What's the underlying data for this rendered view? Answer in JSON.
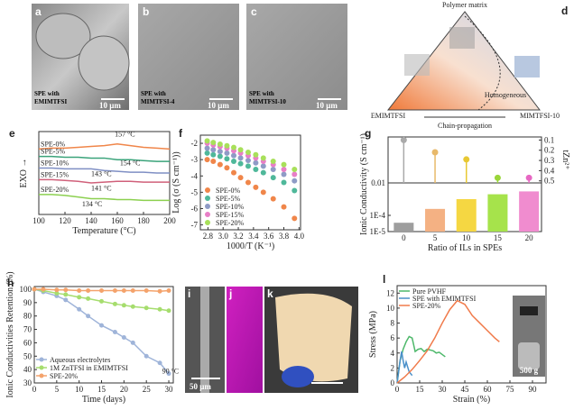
{
  "images": [
    {
      "label": "a",
      "caption": [
        "SPE with",
        "EMIMTFSI"
      ],
      "scale": "10 μm"
    },
    {
      "label": "b",
      "caption": [
        "SPE with",
        "MIMTFSI-4"
      ],
      "scale": "10 μm"
    },
    {
      "label": "c",
      "caption": [
        "SPE with",
        "MIMTFSI-10"
      ],
      "scale": "10 μm"
    },
    {
      "label": "i",
      "scale": "50 μm"
    },
    {
      "label": "j"
    },
    {
      "label": "k"
    }
  ],
  "diagram": {
    "label": "d",
    "top": "Polymer matrix",
    "left": "EMIMTFSI",
    "right": "MIMTFSI-10",
    "center": "Homogeneous",
    "bottom": "Chain-propagation"
  },
  "chart_data": [
    {
      "type": "line",
      "label": "e",
      "xlabel": "Temperature (°C)",
      "ylabel": "EXO →",
      "legend": "inline",
      "xlim": [
        100,
        200
      ],
      "xticks": [
        100,
        120,
        140,
        160,
        180,
        200
      ],
      "ylim": [
        0,
        10
      ],
      "x": [
        100,
        110,
        120,
        130,
        140,
        150,
        160,
        170,
        180,
        190,
        200
      ],
      "series": [
        {
          "name": "SPE-0%",
          "color": "#f0864a",
          "values": [
            7.9,
            8.0,
            8.0,
            8.1,
            8.2,
            8.3,
            8.5,
            8.3,
            8.1,
            8.0,
            7.9
          ]
        },
        {
          "name": "SPE-5%",
          "color": "#3aa37a",
          "values": [
            7.0,
            7.0,
            6.9,
            6.9,
            6.8,
            6.8,
            6.6,
            6.6,
            6.5,
            6.4,
            6.4
          ]
        },
        {
          "name": "SPE-10%",
          "color": "#7f8fc4",
          "values": [
            5.6,
            5.6,
            5.5,
            5.5,
            5.5,
            5.3,
            5.2,
            5.1,
            5.1,
            5.0,
            5.0
          ]
        },
        {
          "name": "SPE-15%",
          "color": "#d0607a",
          "values": [
            4.2,
            4.2,
            4.1,
            4.0,
            3.8,
            3.9,
            4.0,
            4.0,
            3.9,
            3.9,
            3.9
          ]
        },
        {
          "name": "SPE-20%",
          "color": "#8cd050",
          "values": [
            2.4,
            2.4,
            2.3,
            2.1,
            1.9,
            1.9,
            1.8,
            1.8,
            1.7,
            1.7,
            1.7
          ]
        }
      ],
      "annotations": [
        {
          "text": "157 °C",
          "x": 158,
          "y": 9.4
        },
        {
          "text": "154 °C",
          "x": 162,
          "y": 5.9
        },
        {
          "text": "143 °C",
          "x": 140,
          "y": 4.6
        },
        {
          "text": "141 °C",
          "x": 140,
          "y": 2.9
        },
        {
          "text": "134 °C",
          "x": 133,
          "y": 1.0
        }
      ]
    },
    {
      "type": "scatter",
      "label": "f",
      "xlabel": "1000/T (K⁻¹)",
      "ylabel": "Log (σ (S cm⁻¹))",
      "legend": "lower left",
      "xlim": [
        2.7,
        4.02
      ],
      "xticks": [
        2.8,
        {
          "value": 3,
          "label": "3.0"
        },
        3.2,
        3.4,
        3.6,
        3.8,
        {
          "value": 4,
          "label": "4.0"
        }
      ],
      "ylim": [
        -7.3,
        -1.5
      ],
      "yticks": [
        -2,
        -3,
        -4,
        -5,
        -6,
        -7
      ],
      "x": [
        2.79,
        2.87,
        2.96,
        3.05,
        3.14,
        3.23,
        3.33,
        3.43,
        3.53,
        3.66,
        3.8,
        3.94
      ],
      "series": [
        {
          "name": "SPE-0%",
          "color": "#f0864a",
          "values": [
            -3.0,
            -3.1,
            -3.3,
            -3.5,
            -3.8,
            -4.1,
            -4.4,
            -4.7,
            -5.0,
            -5.4,
            -5.9,
            -6.6
          ]
        },
        {
          "name": "SPE-5%",
          "color": "#4fb89a",
          "values": [
            -2.6,
            -2.7,
            -2.8,
            -2.95,
            -3.1,
            -3.25,
            -3.4,
            -3.6,
            -3.8,
            -4.1,
            -4.4,
            -4.9
          ]
        },
        {
          "name": "SPE-10%",
          "color": "#8f9bc6",
          "values": [
            -2.3,
            -2.4,
            -2.5,
            -2.6,
            -2.75,
            -2.9,
            -3.05,
            -3.2,
            -3.4,
            -3.6,
            -3.9,
            -4.3
          ]
        },
        {
          "name": "SPE-15%",
          "color": "#e87fc7",
          "values": [
            -2.0,
            -2.1,
            -2.2,
            -2.3,
            -2.45,
            -2.6,
            -2.75,
            -2.9,
            -3.1,
            -3.3,
            -3.6,
            -3.9
          ]
        },
        {
          "name": "SPE-20%",
          "color": "#a8e05a",
          "values": [
            -1.85,
            -1.95,
            -2.05,
            -2.15,
            -2.25,
            -2.4,
            -2.55,
            -2.7,
            -2.9,
            -3.1,
            -3.3,
            -3.6
          ]
        }
      ]
    },
    {
      "type": "bar",
      "label": "g",
      "xlabel": "Ratio of ILs in SPEs",
      "ylabel": "Ionic Conductivity (S cm⁻¹)",
      "y2label": "tZn²⁺",
      "ylog": true,
      "xlim": [
        -2.5,
        22
      ],
      "xticks": [
        0,
        5,
        10,
        15,
        20
      ],
      "x": [
        0,
        5,
        10,
        15,
        20
      ],
      "ylim": [
        1e-05,
        0.01
      ],
      "yticks": [
        {
          "value": 1e-05,
          "label": "1E-5"
        },
        {
          "value": 0.0001,
          "label": "1E-4"
        },
        0.01
      ],
      "y2lim": [
        0.52,
        0.07
      ],
      "y2ticks": [
        0.1,
        0.2,
        0.3,
        0.4,
        0.5
      ],
      "series": [
        {
          "values": [
            3.5e-05,
            0.00025,
            0.001,
            0.002,
            0.003
          ],
          "colors": [
            "#9e9e9e",
            "#f4b183",
            "#f5d742",
            "#a6e34b",
            "#f08ccf"
          ]
        },
        {
          "axis": "y2",
          "values": [
            0.1,
            0.22,
            0.29,
            0.47,
            0.47
          ],
          "colors": [
            "#aaaaaa",
            "#e8b96a",
            "#e8c833",
            "#9ad63a",
            "#e767c3"
          ]
        }
      ]
    },
    {
      "type": "line",
      "label": "h",
      "xlabel": "Time (days)",
      "ylabel": "Ionic Conductivities Retention (%)",
      "legend": "lower left",
      "markers": true,
      "xlim": [
        0,
        31
      ],
      "xticks": [
        0,
        5,
        10,
        15,
        20,
        25,
        30
      ],
      "ylim": [
        30,
        102
      ],
      "yticks": [
        30,
        40,
        50,
        60,
        70,
        80,
        90,
        100
      ],
      "x": [
        0,
        2,
        5,
        7,
        10,
        12,
        15,
        18,
        20,
        22,
        25,
        28,
        30
      ],
      "series": [
        {
          "name": "Aqueous electrolytes",
          "color": "#9fb4d9",
          "values": [
            100,
            98,
            95,
            92,
            85,
            80,
            73,
            68,
            64,
            60,
            50,
            45,
            37
          ]
        },
        {
          "name": "1M ZnTFSI in EMIMTFSI",
          "color": "#a6dd6e",
          "values": [
            100,
            99,
            97,
            96,
            94,
            93,
            91,
            89,
            88,
            87,
            86,
            85,
            84
          ]
        },
        {
          "name": "SPE-20%",
          "color": "#f4a36c",
          "values": [
            100,
            100,
            99.5,
            99.5,
            99,
            99,
            99,
            99,
            99,
            99,
            99,
            98.5,
            99
          ]
        }
      ],
      "annotations": [
        {
          "text": "90 °C",
          "x": 28.5,
          "y": 37
        }
      ]
    },
    {
      "type": "line",
      "label": "l",
      "xlabel": "Strain (%)",
      "ylabel": "Stress (MPa)",
      "legend": "upper left",
      "inset_label": "500 g",
      "xlim": [
        0,
        99
      ],
      "xticks": [
        0,
        15,
        30,
        45,
        60,
        75,
        90
      ],
      "ylim": [
        0,
        13
      ],
      "yticks": [
        0,
        2,
        4,
        6,
        8,
        10,
        12
      ],
      "series": [
        {
          "name": "Pure PVHF",
          "color": "#4db86a",
          "x": [
            0,
            2,
            4,
            6,
            8,
            10,
            12,
            14,
            16,
            18,
            20,
            22,
            24,
            26,
            28,
            30,
            32
          ],
          "values": [
            0,
            3,
            4.5,
            5.5,
            6.2,
            6.0,
            4.2,
            4.5,
            4.6,
            4.2,
            4.5,
            4.4,
            4.3,
            4.0,
            4.1,
            3.8,
            3.5
          ]
        },
        {
          "name": "SPE with EMIMTFSI",
          "color": "#4a90c9",
          "x": [
            0,
            1,
            2,
            3,
            4,
            5,
            6,
            8,
            10
          ],
          "values": [
            0,
            1.5,
            3,
            4.2,
            3,
            2,
            2.8,
            1.5,
            1.0
          ]
        },
        {
          "name": "SPE-20%",
          "color": "#f07a4a",
          "x": [
            0,
            5,
            10,
            15,
            20,
            25,
            30,
            35,
            40,
            45,
            50,
            55,
            60,
            65,
            68
          ],
          "values": [
            0,
            0.8,
            1.8,
            3,
            4.3,
            6,
            8,
            9.8,
            11,
            10.5,
            9,
            8,
            7,
            6,
            5.5
          ]
        }
      ]
    }
  ]
}
